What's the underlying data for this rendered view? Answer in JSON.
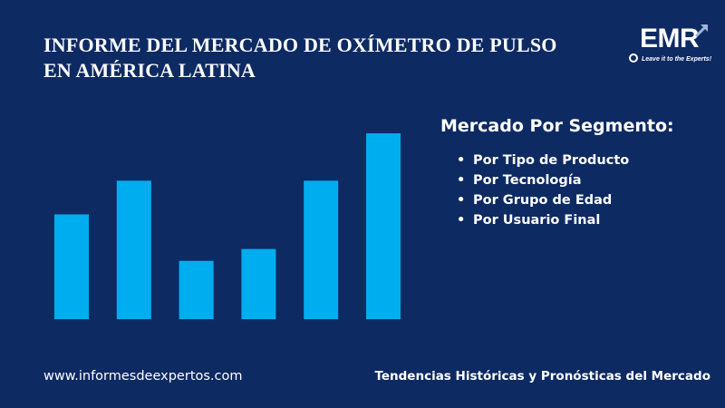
{
  "header": {
    "title_line1": "INFORME DEL MERCADO DE OXÍMETRO DE PULSO",
    "title_line2": "EN AMÉRICA LATINA"
  },
  "logo": {
    "text": "EMR",
    "tagline": "Leave it to the Experts!",
    "icon": "arrow-up-right-icon"
  },
  "segment": {
    "heading": "Mercado Por Segmento:",
    "items": [
      "Por Tipo de Producto",
      "Por Tecnología",
      "Por Grupo de Edad",
      "Por Usuario Final"
    ]
  },
  "footer": {
    "website": "www.informesdeexpertos.com",
    "tagline": "Tendencias Históricas y Pronósticas del Mercado"
  },
  "colors": {
    "background": "#0e2a63",
    "bar": "#00aeef",
    "text": "#ffffff"
  },
  "chart_data": {
    "type": "bar",
    "categories": [
      "",
      "",
      "",
      "",
      "",
      ""
    ],
    "values": [
      115,
      152,
      64,
      77,
      152,
      204
    ],
    "title": "",
    "xlabel": "",
    "ylabel": "",
    "ylim": [
      0,
      215
    ],
    "grid": false,
    "legend": "none"
  }
}
